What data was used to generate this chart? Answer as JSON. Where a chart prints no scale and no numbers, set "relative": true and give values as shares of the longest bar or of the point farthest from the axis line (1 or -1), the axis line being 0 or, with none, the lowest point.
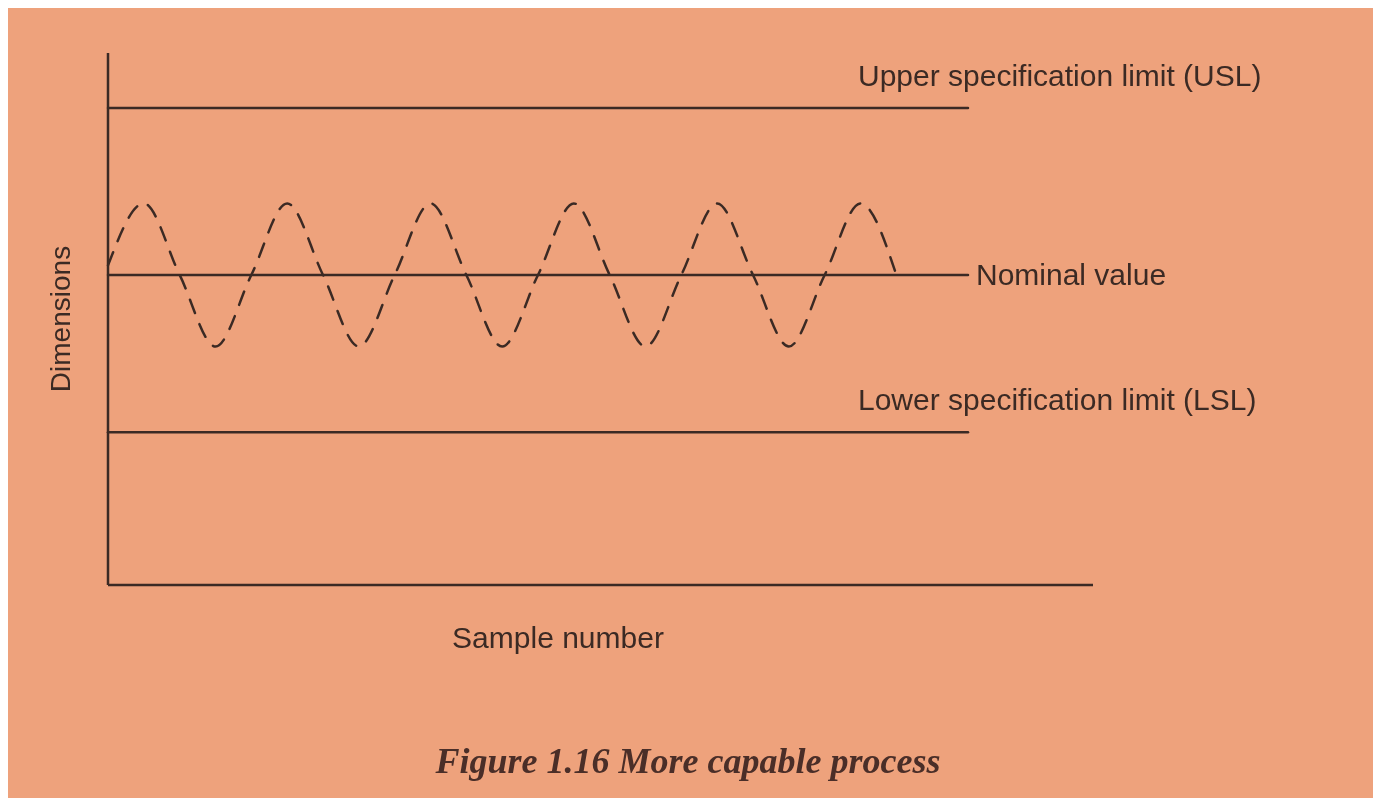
{
  "chart_data": {
    "type": "line",
    "relative": true,
    "title": "Figure 1.16 More capable process",
    "xlabel": "Sample number",
    "ylabel": "Dimensions",
    "categories": [
      null,
      null,
      null,
      null,
      null,
      null,
      null,
      null,
      null,
      null,
      null,
      null,
      null,
      null,
      null,
      null,
      null,
      null,
      null,
      null,
      null,
      null,
      null,
      null,
      null
    ],
    "series": [
      {
        "name": "Upper specification limit (USL)",
        "color": "#3b2a24",
        "line_style": "solid",
        "values": [
          1,
          1,
          1,
          1,
          1,
          1,
          1,
          1,
          1,
          1,
          1,
          1,
          1,
          1,
          1,
          1,
          1,
          1,
          1,
          1,
          1,
          1,
          1,
          1,
          1
        ]
      },
      {
        "name": "Nominal value",
        "color": "#3b2a24",
        "line_style": "solid",
        "values": [
          0.65,
          0.65,
          0.65,
          0.65,
          0.65,
          0.65,
          0.65,
          0.65,
          0.65,
          0.65,
          0.65,
          0.65,
          0.65,
          0.65,
          0.65,
          0.65,
          0.65,
          0.65,
          0.65,
          0.65,
          0.65,
          0.65,
          0.65,
          0.65,
          0.65
        ]
      },
      {
        "name": "Lower specification limit (LSL)",
        "color": "#3b2a24",
        "line_style": "solid",
        "values": [
          0.32,
          0.32,
          0.32,
          0.32,
          0.32,
          0.32,
          0.32,
          0.32,
          0.32,
          0.32,
          0.32,
          0.32,
          0.32,
          0.32,
          0.32,
          0.32,
          0.32,
          0.32,
          0.32,
          0.32,
          0.32,
          0.32,
          0.32,
          0.32,
          0.32
        ]
      },
      {
        "color": "#3b2a24",
        "line_style": "dashed",
        "values": [
          0.67,
          0.8,
          0.65,
          0.5,
          0.65,
          0.8,
          0.65,
          0.5,
          0.65,
          0.8,
          0.65,
          0.5,
          0.65,
          0.8,
          0.65,
          0.5,
          0.65,
          0.8,
          0.65,
          0.5,
          0.65,
          0.8,
          0.65,
          null,
          null
        ]
      }
    ]
  }
}
